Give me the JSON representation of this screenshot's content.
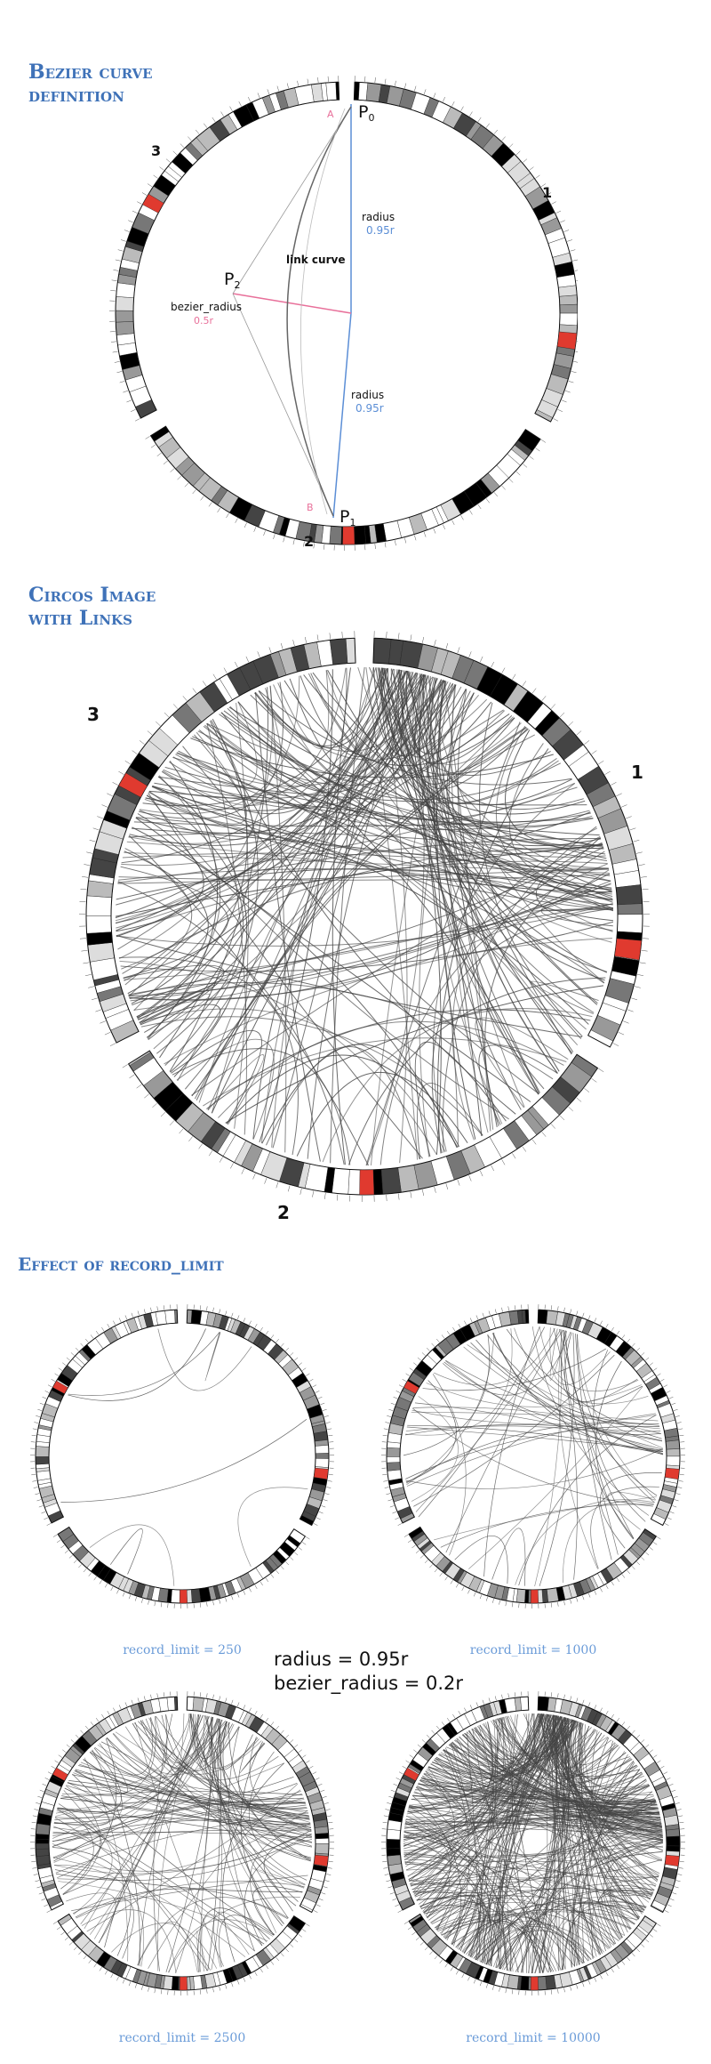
{
  "sections": {
    "bezier": {
      "title_line1": "Bezier curve",
      "title_line2": "definition"
    },
    "links": {
      "title_line1": "Circos Image",
      "title_line2": "with Links"
    },
    "record": {
      "title": "Effect of record_limit"
    }
  },
  "diagram": {
    "label_A": "A",
    "label_B": "B",
    "p0": "P",
    "p0_sub": "0",
    "p1": "P",
    "p1_sub": "1",
    "p2": "P",
    "p2_sub": "2",
    "radius_label": "radius",
    "radius_value": "0.95r",
    "radius_label2": "radius",
    "radius_value2": "0.95r",
    "link_curve": "link curve",
    "bezier_radius_label": "bezier_radius",
    "bezier_radius_value": "0.5r"
  },
  "chromosomes": {
    "one": "1",
    "two": "2",
    "three": "3"
  },
  "record_limit": {
    "params_line1": "radius = 0.95r",
    "params_line2": "bezier_radius = 0.2r",
    "panels": [
      {
        "caption": "record_limit = 250",
        "links": 8
      },
      {
        "caption": "record_limit = 1000",
        "links": 70
      },
      {
        "caption": "record_limit = 2500",
        "links": 160
      },
      {
        "caption": "record_limit = 10000",
        "links": 420
      }
    ]
  },
  "colors": {
    "heading": "#3f72b8",
    "caption": "#6a9bd8",
    "highlight": "#e03a2f",
    "pink": "#e8709a",
    "blue": "#5b8ed6"
  }
}
